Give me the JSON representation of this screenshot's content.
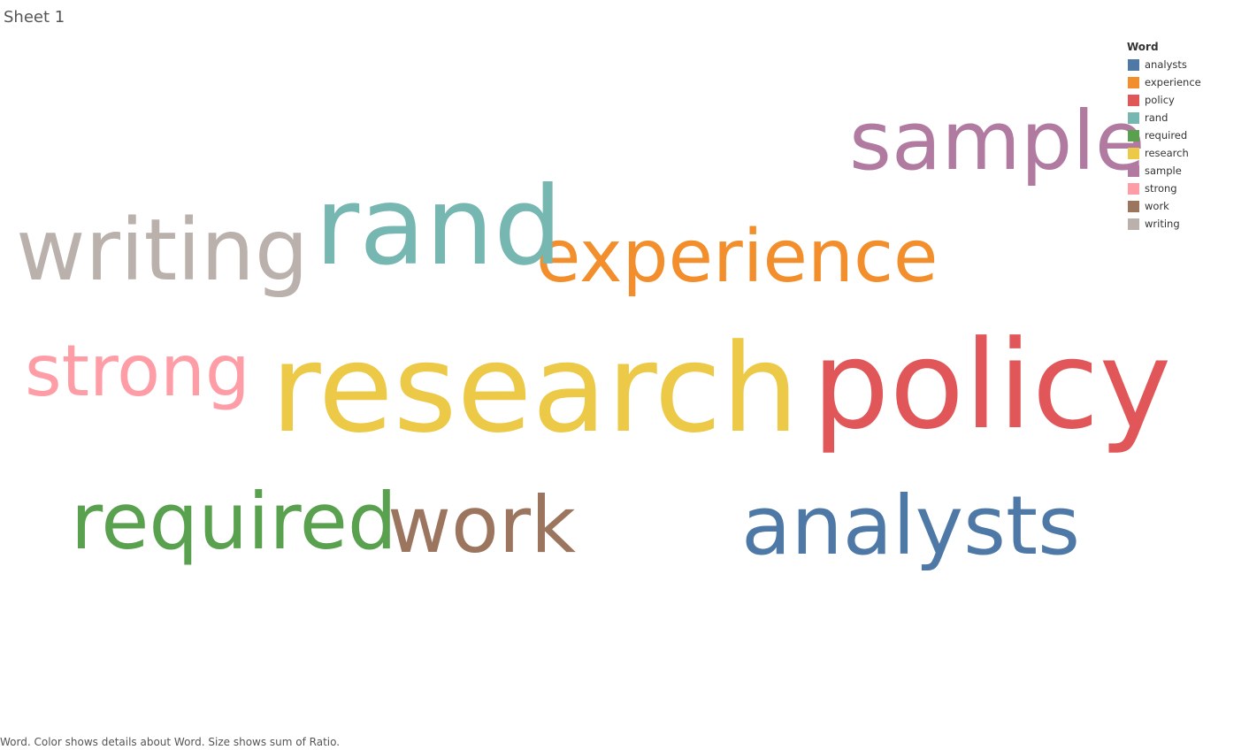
{
  "sheet": {
    "title": "Sheet 1"
  },
  "legend": {
    "title": "Word"
  },
  "caption": "Word.  Color shows details about Word.  Size shows sum of Ratio.",
  "chart_data": {
    "type": "word_cloud",
    "color_field": "Word",
    "size_field": "sum of Ratio",
    "words": [
      {
        "word": "analysts",
        "color": "#4e79a7"
      },
      {
        "word": "experience",
        "color": "#f28e2b"
      },
      {
        "word": "policy",
        "color": "#e15759"
      },
      {
        "word": "rand",
        "color": "#76b7b2"
      },
      {
        "word": "required",
        "color": "#59a14f"
      },
      {
        "word": "research",
        "color": "#edc948"
      },
      {
        "word": "sample",
        "color": "#b07aa1"
      },
      {
        "word": "strong",
        "color": "#ff9da7"
      },
      {
        "word": "work",
        "color": "#9c755f"
      },
      {
        "word": "writing",
        "color": "#bab0ac"
      }
    ]
  }
}
